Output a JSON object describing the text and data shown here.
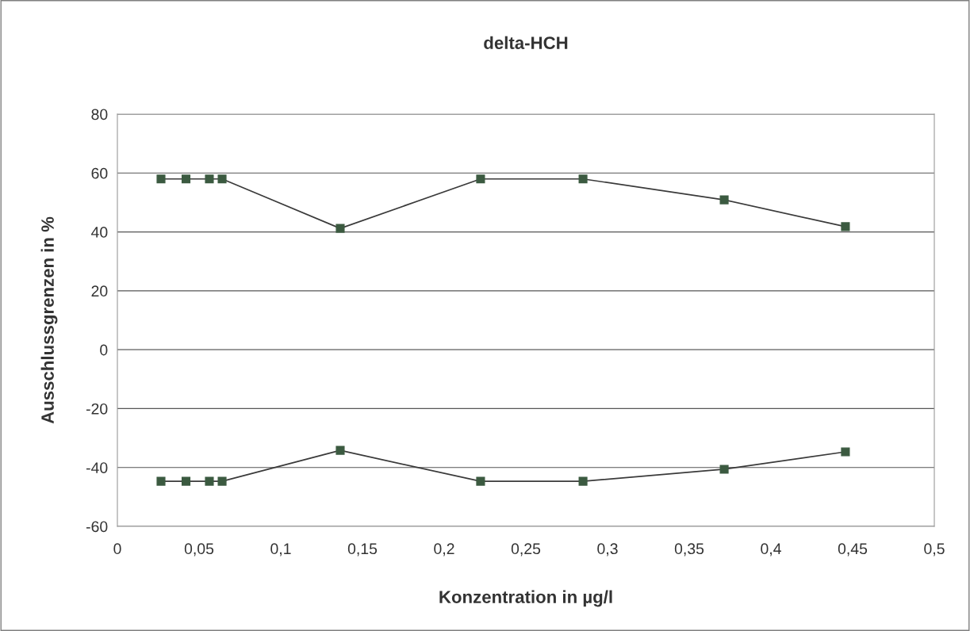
{
  "chart_data": {
    "type": "line",
    "title": "delta-HCH",
    "xlabel": "Konzentration in µg/l",
    "ylabel": "Ausschlussgrenzen in %",
    "x": [
      0.0267,
      0.042,
      0.0563,
      0.0641,
      0.1364,
      0.2223,
      0.285,
      0.3714,
      0.4456
    ],
    "series": [
      {
        "color": "#3b5a40",
        "values": [
          58,
          58,
          58,
          58,
          41.2,
          58,
          58,
          50.9,
          41.8
        ]
      },
      {
        "color": "#3b5a40",
        "values": [
          -44.7,
          -44.7,
          -44.7,
          -44.7,
          -34.2,
          -44.7,
          -44.7,
          -40.6,
          -34.7
        ]
      }
    ],
    "xlim": [
      0,
      0.5
    ],
    "xticks": [
      {
        "value": 0,
        "label": "0"
      },
      {
        "value": 0.05,
        "label": "0,05"
      },
      {
        "value": 0.1,
        "label": "0,1"
      },
      {
        "value": 0.15,
        "label": "0,15"
      },
      {
        "value": 0.2,
        "label": "0,2"
      },
      {
        "value": 0.25,
        "label": "0,25"
      },
      {
        "value": 0.3,
        "label": "0,3"
      },
      {
        "value": 0.35,
        "label": "0,35"
      },
      {
        "value": 0.4,
        "label": "0,4"
      },
      {
        "value": 0.45,
        "label": "0,45"
      },
      {
        "value": 0.5,
        "label": "0,5"
      }
    ],
    "ylim": [
      -60,
      80
    ],
    "yticks": [
      -60,
      -40,
      -20,
      0,
      20,
      40,
      60,
      80
    ],
    "grid": "y",
    "marker": "square",
    "line_style": "solid"
  }
}
